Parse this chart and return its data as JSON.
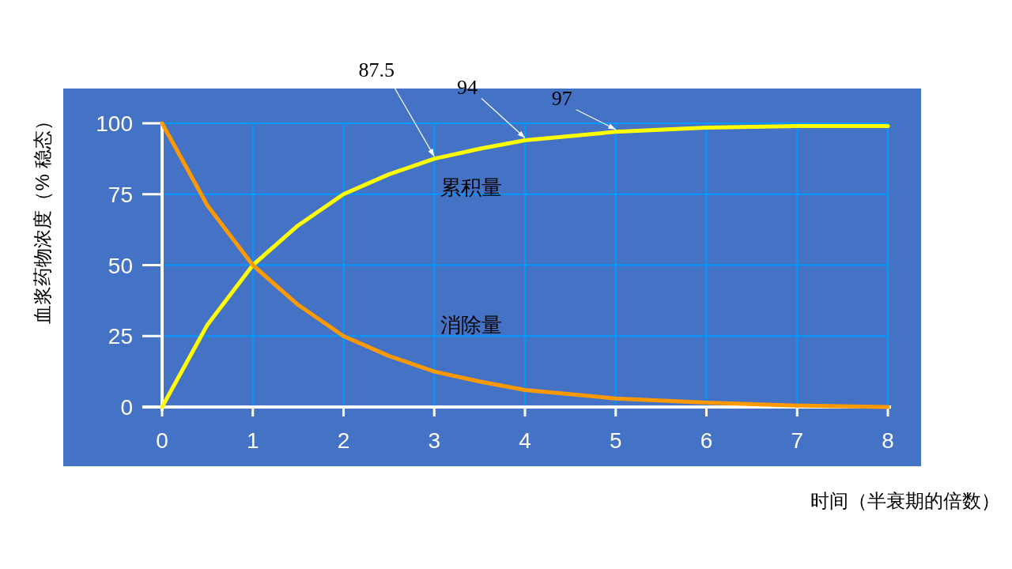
{
  "chart_data": {
    "type": "line",
    "xlabel": "时间（半衰期的倍数）",
    "ylabel": "血浆药物浓度（% 稳态）",
    "x": [
      0,
      0.5,
      1,
      1.5,
      2,
      2.5,
      3,
      3.5,
      4,
      5,
      6,
      7,
      8
    ],
    "series": [
      {
        "name": "累积量",
        "color": "#ffff00",
        "values": [
          0,
          29,
          50,
          64,
          75,
          82,
          87.5,
          91,
          94,
          97,
          98.5,
          99,
          99
        ]
      },
      {
        "name": "消除量",
        "color": "#ff9900",
        "values": [
          100,
          71,
          50,
          36,
          25,
          18,
          12.5,
          9,
          6,
          3,
          1.5,
          0.5,
          0
        ]
      }
    ],
    "xlim": [
      0,
      8
    ],
    "ylim": [
      0,
      100
    ],
    "xticks": [
      0,
      1,
      2,
      3,
      4,
      5,
      6,
      7,
      8
    ],
    "yticks": [
      0,
      25,
      50,
      75,
      100
    ],
    "grid": true,
    "annotations": [
      {
        "text": "87.5",
        "x": 3,
        "y": 87.5
      },
      {
        "text": "94",
        "x": 4,
        "y": 94
      },
      {
        "text": "97",
        "x": 5,
        "y": 97
      }
    ]
  }
}
